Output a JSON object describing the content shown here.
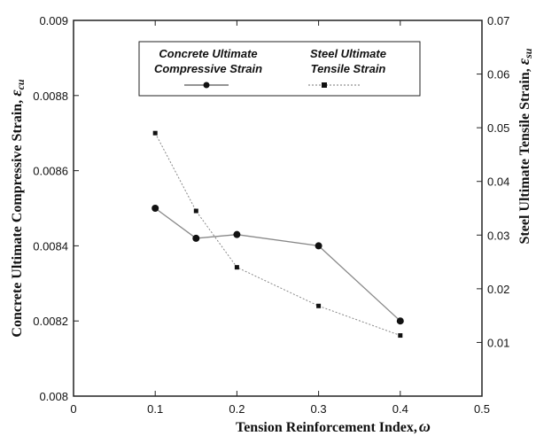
{
  "chart_data": {
    "type": "line",
    "x": [
      0.1,
      0.15,
      0.2,
      0.3,
      0.4
    ],
    "xlim": [
      0,
      0.5
    ],
    "xticks": [
      "0",
      "0.1",
      "0.2",
      "0.3",
      "0.4",
      "0.5"
    ],
    "xlabel": "Tension Reinforcement Index,",
    "xlabel_symbol": "ω",
    "ylim_left": [
      0.008,
      0.009
    ],
    "yticks_left": [
      "0.008",
      "0.0082",
      "0.0084",
      "0.0086",
      "0.0088",
      "0.009"
    ],
    "ylabel_left": "Concrete Ultimate Compressive Strain,",
    "ylabel_left_symbol": "ε",
    "ylabel_left_sub": "cu",
    "ylim_right": [
      0,
      0.07
    ],
    "yticks_right": [
      "0.01",
      "0.02",
      "0.03",
      "0.04",
      "0.05",
      "0.06",
      "0.07"
    ],
    "ylabel_right": "Steel Ultimate Tensile Strain,",
    "ylabel_right_symbol": "ε",
    "ylabel_right_sub": "su",
    "grid": false,
    "legend_placement": "top-center",
    "series": [
      {
        "name_line1": "Concrete Ultimate",
        "name_line2": "Compressive Strain",
        "axis": "left",
        "marker": "circle",
        "line_style": "solid",
        "color": "#888888",
        "values": [
          0.0085,
          0.00842,
          0.00843,
          0.0084,
          0.0082
        ]
      },
      {
        "name_line1": "Steel Ultimate",
        "name_line2": "Tensile Strain",
        "axis": "right",
        "marker": "square",
        "line_style": "dotted",
        "color": "#888888",
        "values": [
          0.049,
          0.0345,
          0.024,
          0.0168,
          0.0113
        ]
      }
    ]
  }
}
